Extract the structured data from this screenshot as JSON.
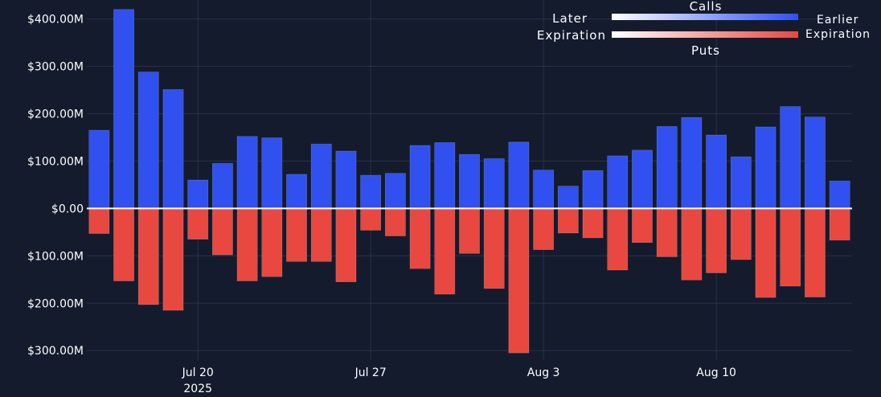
{
  "chart_data": {
    "type": "bar",
    "x": [
      "2025-07-16",
      "2025-07-17",
      "2025-07-18",
      "2025-07-19",
      "2025-07-20",
      "2025-07-21",
      "2025-07-22",
      "2025-07-23",
      "2025-07-24",
      "2025-07-25",
      "2025-07-26",
      "2025-07-27",
      "2025-07-28",
      "2025-07-29",
      "2025-07-30",
      "2025-07-31",
      "2025-08-01",
      "2025-08-02",
      "2025-08-03",
      "2025-08-04",
      "2025-08-05",
      "2025-08-06",
      "2025-08-07",
      "2025-08-08",
      "2025-08-09",
      "2025-08-10",
      "2025-08-11",
      "2025-08-12",
      "2025-08-13",
      "2025-08-14",
      "2025-08-15"
    ],
    "series": [
      {
        "name": "Calls",
        "color": "#3050f0",
        "values": [
          165,
          420,
          288,
          251,
          60,
          95,
          152,
          149,
          72,
          136,
          121,
          70,
          74,
          133,
          139,
          114,
          105,
          140,
          81,
          47,
          80,
          111,
          123,
          173,
          192,
          155,
          109,
          172,
          215,
          193,
          58
        ]
      },
      {
        "name": "Puts",
        "color": "#e8483f",
        "values": [
          -53,
          -153,
          -203,
          -215,
          -65,
          -98,
          -153,
          -144,
          -112,
          -112,
          -155,
          -46,
          -58,
          -127,
          -181,
          -95,
          -169,
          -305,
          -87,
          -52,
          -62,
          -130,
          -72,
          -102,
          -151,
          -136,
          -108,
          -188,
          -164,
          -187,
          -67
        ]
      }
    ],
    "x_ticks": [
      {
        "date": "2025-07-20",
        "label": "Jul 20",
        "sublabel": "2025"
      },
      {
        "date": "2025-07-27",
        "label": "Jul 27",
        "sublabel": ""
      },
      {
        "date": "2025-08-03",
        "label": "Aug 3",
        "sublabel": ""
      },
      {
        "date": "2025-08-10",
        "label": "Aug 10",
        "sublabel": ""
      }
    ],
    "y_ticks": [
      {
        "value": 400,
        "label": "$400.00M"
      },
      {
        "value": 300,
        "label": "$300.00M"
      },
      {
        "value": 200,
        "label": "$200.00M"
      },
      {
        "value": 100,
        "label": "$100.00M"
      },
      {
        "value": 0,
        "label": "$0.00"
      },
      {
        "value": -100,
        "label": "$100.00M"
      },
      {
        "value": -200,
        "label": "$200.00M"
      },
      {
        "value": -300,
        "label": "$300.00M"
      }
    ],
    "ylim": [
      -320,
      440
    ],
    "xlim": [
      "2025-07-15T12:00",
      "2025-08-15T12:00"
    ],
    "grid": true,
    "legend": {
      "position": "top-right",
      "calls_label": "Calls",
      "puts_label": "Puts",
      "left_label_line1": "Later",
      "left_label_line2": "Expiration",
      "right_label_line1": "Earlier",
      "right_label_line2": "Expiration"
    },
    "colors": {
      "background": "#141b2d",
      "grid": "#26314a",
      "zero_line": "#ffffff",
      "calls": "#3050f0",
      "puts": "#e8483f",
      "gradient_start": "#ffffff"
    }
  }
}
